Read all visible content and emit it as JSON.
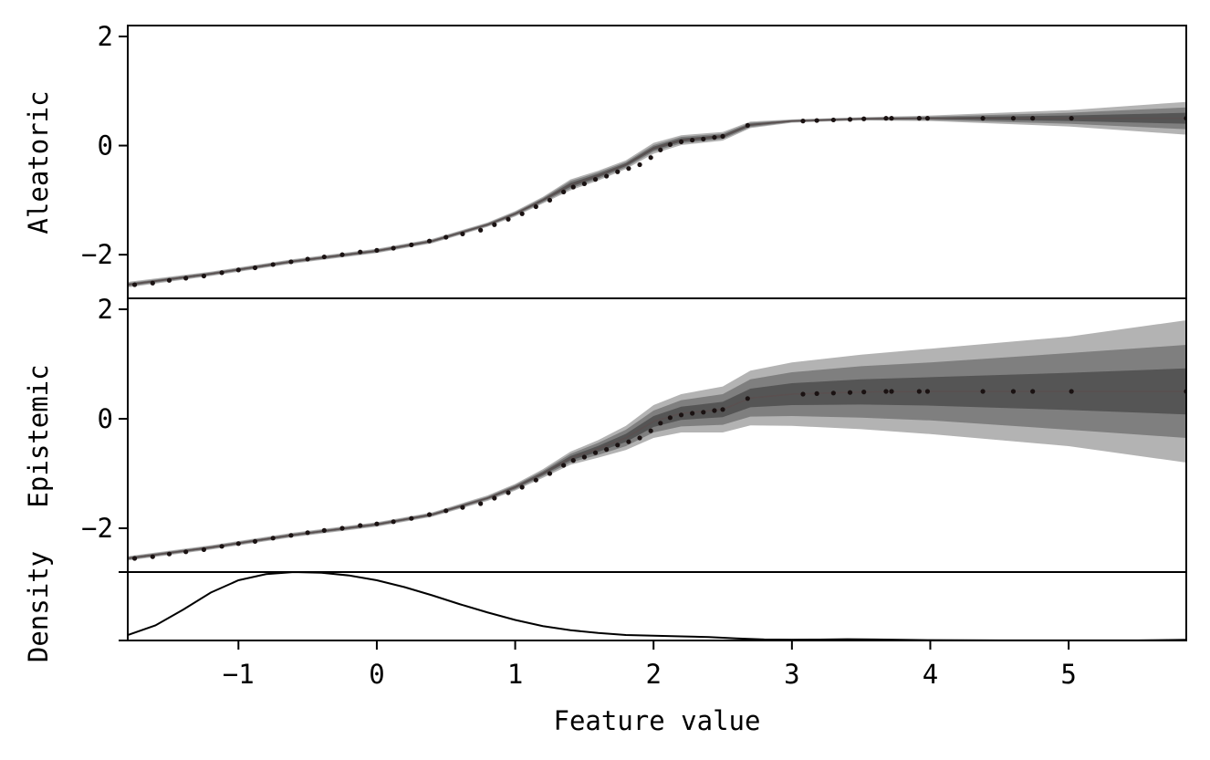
{
  "chart_data": [
    {
      "type": "line",
      "ylabel": "Aleatoric",
      "xlim": [
        -1.8,
        5.85
      ],
      "ylim": [
        -2.8,
        2.2
      ],
      "yticks": [
        -2,
        0,
        2
      ],
      "ytick_labels": [
        "−2",
        "0",
        "2"
      ],
      "mean_curve": {
        "x": [
          -1.8,
          -1.2,
          -0.6,
          0.0,
          0.4,
          0.8,
          1.0,
          1.2,
          1.4,
          1.6,
          1.8,
          2.0,
          2.2,
          2.5,
          2.7,
          3.0,
          3.5,
          4.0,
          5.0,
          5.85
        ],
        "y": [
          -2.55,
          -2.35,
          -2.12,
          -1.93,
          -1.75,
          -1.45,
          -1.25,
          -1.0,
          -0.72,
          -0.55,
          -0.35,
          -0.05,
          0.1,
          0.17,
          0.38,
          0.45,
          0.49,
          0.5,
          0.5,
          0.5
        ]
      },
      "bands": [
        {
          "level": "outer",
          "color": "#b3b3b3",
          "half_width": [
            0.05,
            0.04,
            0.04,
            0.04,
            0.04,
            0.04,
            0.05,
            0.06,
            0.1,
            0.09,
            0.08,
            0.1,
            0.09,
            0.08,
            0.06,
            0.03,
            0.03,
            0.05,
            0.15,
            0.3
          ]
        },
        {
          "level": "middle",
          "color": "#7f7f7f",
          "half_width": [
            0.03,
            0.025,
            0.025,
            0.025,
            0.025,
            0.025,
            0.03,
            0.04,
            0.07,
            0.06,
            0.05,
            0.06,
            0.06,
            0.05,
            0.04,
            0.02,
            0.02,
            0.03,
            0.1,
            0.2
          ]
        },
        {
          "level": "inner",
          "color": "#555555",
          "half_width": [
            0.015,
            0.012,
            0.012,
            0.012,
            0.012,
            0.012,
            0.015,
            0.02,
            0.035,
            0.03,
            0.025,
            0.03,
            0.03,
            0.025,
            0.02,
            0.01,
            0.01,
            0.015,
            0.05,
            0.1
          ]
        }
      ],
      "points": {
        "x": [
          -1.75,
          -1.62,
          -1.5,
          -1.38,
          -1.25,
          -1.12,
          -1.0,
          -0.88,
          -0.75,
          -0.62,
          -0.5,
          -0.38,
          -0.25,
          -0.12,
          0.0,
          0.12,
          0.25,
          0.38,
          0.5,
          0.62,
          0.75,
          0.85,
          0.95,
          1.05,
          1.15,
          1.25,
          1.35,
          1.42,
          1.5,
          1.58,
          1.66,
          1.74,
          1.82,
          1.9,
          1.98,
          2.05,
          2.12,
          2.2,
          2.28,
          2.36,
          2.44,
          2.5,
          2.68,
          3.08,
          3.18,
          3.3,
          3.42,
          3.52,
          3.68,
          3.72,
          3.92,
          3.98,
          4.38,
          4.6,
          4.74,
          5.02,
          5.85
        ],
        "y": [
          -2.55,
          -2.52,
          -2.47,
          -2.43,
          -2.39,
          -2.33,
          -2.28,
          -2.24,
          -2.18,
          -2.13,
          -2.08,
          -2.04,
          -2.0,
          -1.95,
          -1.92,
          -1.88,
          -1.82,
          -1.75,
          -1.68,
          -1.62,
          -1.55,
          -1.45,
          -1.35,
          -1.25,
          -1.12,
          -1.0,
          -0.85,
          -0.76,
          -0.7,
          -0.62,
          -0.56,
          -0.48,
          -0.42,
          -0.35,
          -0.22,
          -0.08,
          0.02,
          0.07,
          0.1,
          0.12,
          0.15,
          0.17,
          0.37,
          0.45,
          0.46,
          0.47,
          0.48,
          0.49,
          0.5,
          0.5,
          0.5,
          0.5,
          0.5,
          0.5,
          0.5,
          0.5,
          0.5
        ]
      }
    },
    {
      "type": "line",
      "ylabel": "Epistemic",
      "xlim": [
        -1.8,
        5.85
      ],
      "ylim": [
        -2.8,
        2.2
      ],
      "yticks": [
        -2,
        0,
        2
      ],
      "ytick_labels": [
        "−2",
        "0",
        "2"
      ],
      "mean_curve": {
        "x": [
          -1.8,
          -1.2,
          -0.6,
          0.0,
          0.4,
          0.8,
          1.0,
          1.2,
          1.4,
          1.6,
          1.8,
          2.0,
          2.2,
          2.5,
          2.7,
          3.0,
          3.5,
          4.0,
          5.0,
          5.85
        ],
        "y": [
          -2.55,
          -2.35,
          -2.12,
          -1.93,
          -1.75,
          -1.45,
          -1.25,
          -1.0,
          -0.72,
          -0.55,
          -0.35,
          -0.05,
          0.1,
          0.17,
          0.38,
          0.45,
          0.49,
          0.5,
          0.5,
          0.5
        ]
      },
      "bands": [
        {
          "level": "outer",
          "color": "#b3b3b3",
          "half_width": [
            0.04,
            0.04,
            0.04,
            0.04,
            0.04,
            0.05,
            0.06,
            0.08,
            0.12,
            0.16,
            0.22,
            0.3,
            0.35,
            0.42,
            0.5,
            0.58,
            0.68,
            0.78,
            1.0,
            1.3
          ]
        },
        {
          "level": "middle",
          "color": "#7f7f7f",
          "half_width": [
            0.025,
            0.025,
            0.025,
            0.025,
            0.025,
            0.03,
            0.04,
            0.05,
            0.08,
            0.11,
            0.15,
            0.2,
            0.24,
            0.28,
            0.34,
            0.4,
            0.47,
            0.53,
            0.7,
            0.85
          ]
        },
        {
          "level": "inner",
          "color": "#555555",
          "half_width": [
            0.012,
            0.012,
            0.012,
            0.012,
            0.012,
            0.015,
            0.02,
            0.025,
            0.04,
            0.055,
            0.075,
            0.1,
            0.12,
            0.14,
            0.17,
            0.2,
            0.23,
            0.26,
            0.34,
            0.42
          ]
        }
      ],
      "points": {
        "x": [
          -1.75,
          -1.62,
          -1.5,
          -1.38,
          -1.25,
          -1.12,
          -1.0,
          -0.88,
          -0.75,
          -0.62,
          -0.5,
          -0.38,
          -0.25,
          -0.12,
          0.0,
          0.12,
          0.25,
          0.38,
          0.5,
          0.62,
          0.75,
          0.85,
          0.95,
          1.05,
          1.15,
          1.25,
          1.35,
          1.42,
          1.5,
          1.58,
          1.66,
          1.74,
          1.82,
          1.9,
          1.98,
          2.05,
          2.12,
          2.2,
          2.28,
          2.36,
          2.44,
          2.5,
          2.68,
          3.08,
          3.18,
          3.3,
          3.42,
          3.52,
          3.68,
          3.72,
          3.92,
          3.98,
          4.38,
          4.6,
          4.74,
          5.02,
          5.85
        ],
        "y": [
          -2.55,
          -2.52,
          -2.47,
          -2.43,
          -2.39,
          -2.33,
          -2.28,
          -2.24,
          -2.18,
          -2.13,
          -2.08,
          -2.04,
          -2.0,
          -1.95,
          -1.92,
          -1.88,
          -1.82,
          -1.75,
          -1.68,
          -1.62,
          -1.55,
          -1.45,
          -1.35,
          -1.25,
          -1.12,
          -1.0,
          -0.85,
          -0.76,
          -0.7,
          -0.62,
          -0.56,
          -0.48,
          -0.42,
          -0.35,
          -0.22,
          -0.08,
          0.02,
          0.07,
          0.1,
          0.12,
          0.15,
          0.17,
          0.37,
          0.45,
          0.46,
          0.47,
          0.48,
          0.49,
          0.5,
          0.5,
          0.5,
          0.5,
          0.5,
          0.5,
          0.5,
          0.5,
          0.5
        ]
      }
    },
    {
      "type": "line",
      "ylabel": "Density",
      "xlabel": "Feature value",
      "xlim": [
        -1.8,
        5.85
      ],
      "ylim": [
        0,
        1
      ],
      "xticks": [
        -1,
        0,
        1,
        2,
        3,
        4,
        5
      ],
      "xtick_labels": [
        "−1",
        "0",
        "1",
        "2",
        "3",
        "4",
        "5"
      ],
      "curve": {
        "x": [
          -1.8,
          -1.6,
          -1.4,
          -1.2,
          -1.0,
          -0.8,
          -0.6,
          -0.4,
          -0.2,
          0.0,
          0.2,
          0.4,
          0.6,
          0.8,
          1.0,
          1.2,
          1.4,
          1.6,
          1.8,
          2.0,
          2.2,
          2.4,
          2.6,
          2.8,
          3.0,
          3.2,
          3.4,
          3.6,
          3.8,
          4.0,
          4.5,
          5.0,
          5.5,
          5.85
        ],
        "y": [
          0.08,
          0.22,
          0.45,
          0.7,
          0.88,
          0.97,
          1.0,
          0.99,
          0.95,
          0.88,
          0.78,
          0.66,
          0.53,
          0.41,
          0.3,
          0.21,
          0.15,
          0.11,
          0.08,
          0.07,
          0.06,
          0.05,
          0.03,
          0.015,
          0.012,
          0.014,
          0.018,
          0.015,
          0.01,
          0.005,
          0.002,
          0.001,
          0.001,
          0.01
        ]
      }
    }
  ]
}
